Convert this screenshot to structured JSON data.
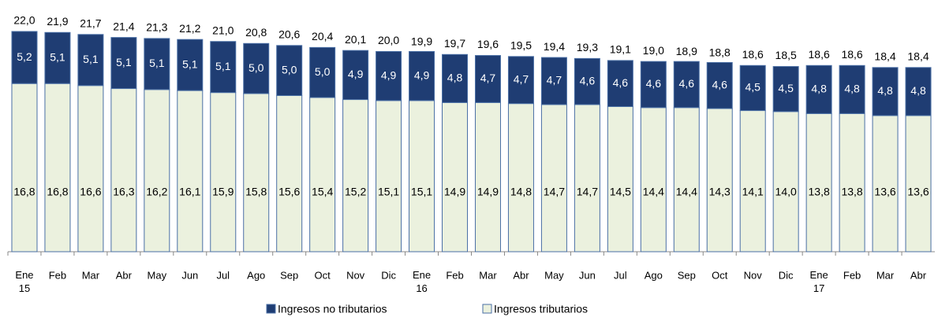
{
  "chart_data": {
    "type": "stacked-bar",
    "categories": [
      "Ene\n15",
      "Feb",
      "Mar",
      "Abr",
      "May",
      "Jun",
      "Jul",
      "Ago",
      "Sep",
      "Oct",
      "Nov",
      "Dic",
      "Ene\n16",
      "Feb",
      "Mar",
      "Abr",
      "May",
      "Jun",
      "Jul",
      "Ago",
      "Sep",
      "Oct",
      "Nov",
      "Dic",
      "Ene\n17",
      "Feb",
      "Mar",
      "Abr"
    ],
    "series": [
      {
        "name": "Ingresos tributarios",
        "color": "#ebf1de",
        "values": [
          16.8,
          16.8,
          16.6,
          16.3,
          16.2,
          16.1,
          15.9,
          15.8,
          15.6,
          15.4,
          15.2,
          15.1,
          15.1,
          14.9,
          14.9,
          14.8,
          14.7,
          14.7,
          14.5,
          14.4,
          14.4,
          14.3,
          14.1,
          14.0,
          13.8,
          13.8,
          13.6,
          13.6
        ],
        "value_labels": [
          "16,8",
          "16,8",
          "16,6",
          "16,3",
          "16,2",
          "16,1",
          "15,9",
          "15,8",
          "15,6",
          "15,4",
          "15,2",
          "15,1",
          "15,1",
          "14,9",
          "14,9",
          "14,8",
          "14,7",
          "14,7",
          "14,5",
          "14,4",
          "14,4",
          "14,3",
          "14,1",
          "14,0",
          "13,8",
          "13,8",
          "13,6",
          "13,6"
        ]
      },
      {
        "name": "Ingresos no tributarios",
        "color": "#1f3d73",
        "values": [
          5.2,
          5.1,
          5.1,
          5.1,
          5.1,
          5.1,
          5.1,
          5.0,
          5.0,
          5.0,
          4.9,
          4.9,
          4.9,
          4.8,
          4.7,
          4.7,
          4.7,
          4.6,
          4.6,
          4.6,
          4.6,
          4.6,
          4.5,
          4.5,
          4.8,
          4.8,
          4.8,
          4.8
        ],
        "value_labels": [
          "5,2",
          "5,1",
          "5,1",
          "5,1",
          "5,1",
          "5,1",
          "5,1",
          "5,0",
          "5,0",
          "5,0",
          "4,9",
          "4,9",
          "4,9",
          "4,8",
          "4,7",
          "4,7",
          "4,7",
          "4,6",
          "4,6",
          "4,6",
          "4,6",
          "4,6",
          "4,5",
          "4,5",
          "4,8",
          "4,8",
          "4,8",
          "4,8"
        ]
      }
    ],
    "totals": {
      "values": [
        22.0,
        21.9,
        21.7,
        21.4,
        21.3,
        21.2,
        21.0,
        20.8,
        20.6,
        20.4,
        20.1,
        20.0,
        19.9,
        19.7,
        19.6,
        19.5,
        19.4,
        19.3,
        19.1,
        19.0,
        18.9,
        18.8,
        18.6,
        18.5,
        18.6,
        18.6,
        18.4,
        18.4
      ],
      "value_labels": [
        "22,0",
        "21,9",
        "21,7",
        "21,4",
        "21,3",
        "21,2",
        "21,0",
        "20,8",
        "20,6",
        "20,4",
        "20,1",
        "20,0",
        "19,9",
        "19,7",
        "19,6",
        "19,5",
        "19,4",
        "19,3",
        "19,1",
        "19,0",
        "18,9",
        "18,8",
        "18,6",
        "18,5",
        "18,6",
        "18,6",
        "18,4",
        "18,4"
      ]
    },
    "ylim": [
      0,
      22
    ]
  }
}
